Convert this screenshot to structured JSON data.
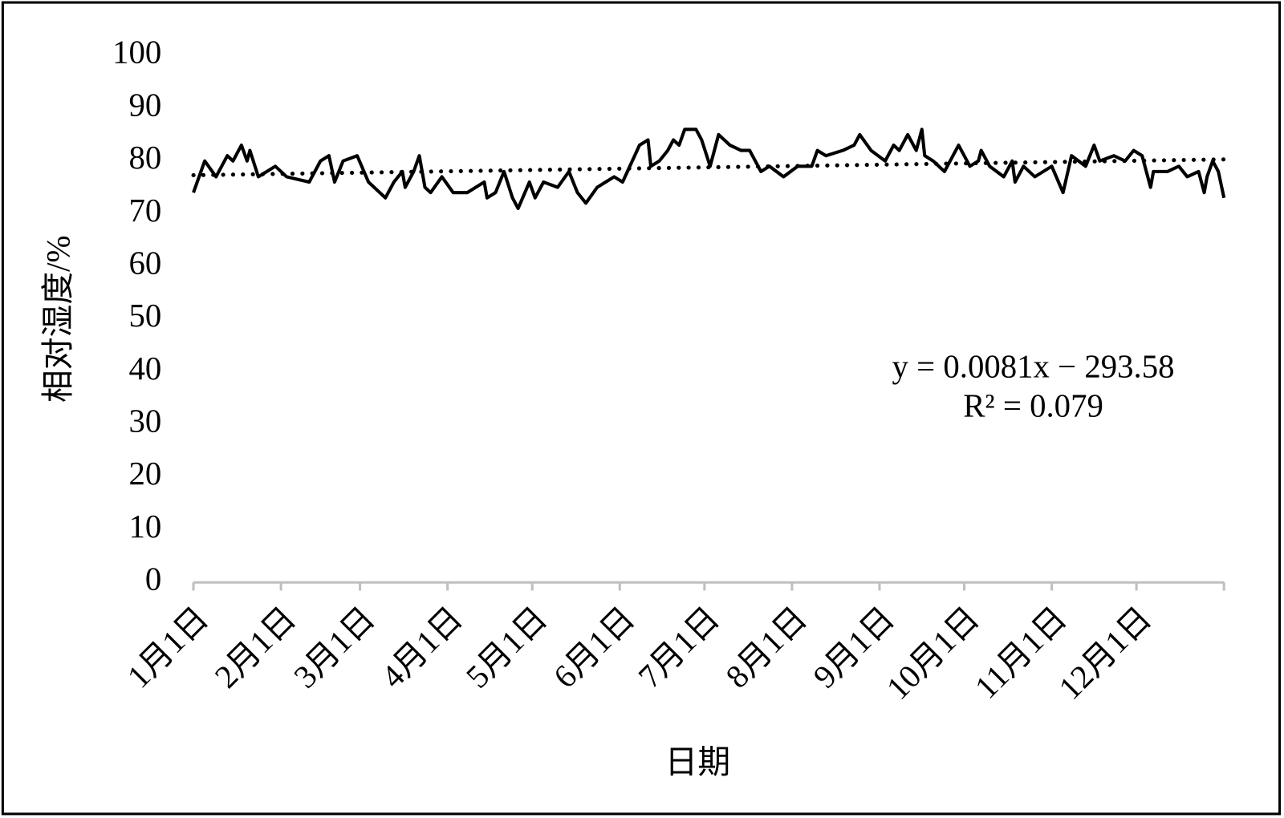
{
  "chart_data": {
    "type": "line",
    "y_label": "相对湿度/%",
    "x_label": "日期",
    "annotations": [
      "y = 0.0081x − 293.58",
      "R² = 0.079"
    ],
    "xlim": [
      0,
      365
    ],
    "xticks": [
      {
        "value": 0,
        "label": "1月1日"
      },
      {
        "value": 31,
        "label": "2月1日"
      },
      {
        "value": 59,
        "label": "3月1日"
      },
      {
        "value": 90,
        "label": "4月1日"
      },
      {
        "value": 120,
        "label": "5月1日"
      },
      {
        "value": 151,
        "label": "6月1日"
      },
      {
        "value": 181,
        "label": "7月1日"
      },
      {
        "value": 212,
        "label": "8月1日"
      },
      {
        "value": 243,
        "label": "9月1日"
      },
      {
        "value": 273,
        "label": "10月1日"
      },
      {
        "value": 304,
        "label": "11月1日"
      },
      {
        "value": 334,
        "label": "12月1日"
      }
    ],
    "ylim": [
      0,
      100
    ],
    "yticks": [
      0,
      10,
      20,
      30,
      40,
      50,
      60,
      70,
      80,
      90,
      100
    ],
    "x": [
      0,
      4,
      8,
      12,
      14,
      17,
      19,
      20,
      23,
      26,
      29,
      33,
      41,
      45,
      48,
      50,
      53,
      58,
      62,
      68,
      71,
      74,
      75,
      78,
      80,
      82,
      84,
      88,
      92,
      97,
      103,
      104,
      107,
      110,
      113,
      115,
      119,
      121,
      124,
      129,
      133,
      136,
      139,
      143,
      146,
      149,
      152,
      158,
      161,
      162,
      165,
      168,
      170,
      172,
      174,
      178,
      180,
      183,
      186,
      190,
      194,
      197,
      201,
      204,
      209,
      214,
      219,
      221,
      224,
      230,
      234,
      236,
      240,
      245,
      248,
      250,
      253,
      256,
      258,
      259,
      262,
      266,
      269,
      271,
      275,
      278,
      279,
      282,
      287,
      290,
      291,
      294,
      298,
      304,
      308,
      311,
      316,
      319,
      321,
      326,
      330,
      333,
      336,
      339,
      340,
      345,
      349,
      352,
      356,
      358,
      359,
      361,
      363,
      365
    ],
    "series": [
      {
        "color": "#000000",
        "values": [
          74,
          80,
          77,
          81,
          80,
          83,
          80,
          82,
          77,
          78,
          79,
          77,
          76,
          80,
          81,
          76,
          80,
          81,
          76,
          73,
          76,
          78,
          75,
          78,
          81,
          75,
          74,
          77,
          74,
          74,
          76,
          73,
          74,
          78,
          73,
          71,
          76,
          73,
          76,
          75,
          78,
          74,
          72,
          75,
          76,
          77,
          76,
          83,
          84,
          79,
          80,
          82,
          84,
          83,
          86,
          86,
          84,
          79,
          85,
          83,
          82,
          82,
          78,
          79,
          77,
          79,
          79,
          82,
          81,
          82,
          83,
          85,
          82,
          80,
          83,
          82,
          85,
          82,
          86,
          81,
          80,
          78,
          81,
          83,
          79,
          80,
          82,
          79,
          77,
          80,
          76,
          79,
          77,
          79,
          74,
          81,
          79,
          83,
          80,
          81,
          80,
          82,
          81,
          75,
          78,
          78,
          79,
          77,
          78,
          74,
          77,
          80,
          78,
          73
        ]
      }
    ],
    "trendline": {
      "color": "#000000",
      "style": "dotted",
      "x": [
        0,
        365
      ],
      "values": [
        77.3,
        80.3
      ]
    }
  }
}
